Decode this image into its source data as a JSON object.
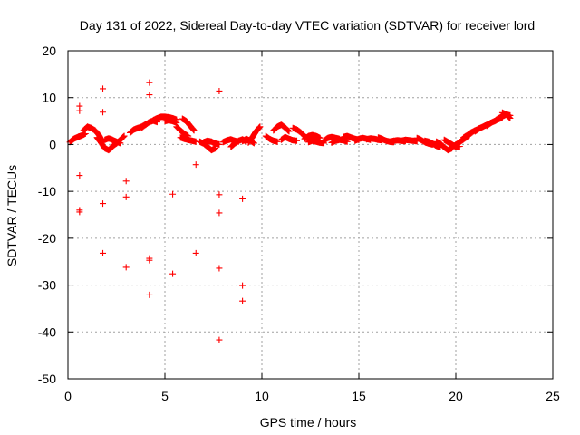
{
  "chart_data": {
    "type": "scatter",
    "title": "Day 131 of 2022, Sidereal Day-to-day VTEC variation (SDTVAR) for receiver lord",
    "xlabel": "GPS time / hours",
    "ylabel": "SDTVAR / TECUs",
    "xlim": [
      0,
      25
    ],
    "ylim": [
      -50,
      20
    ],
    "xticks": [
      0,
      5,
      10,
      15,
      20,
      25
    ],
    "yticks": [
      -50,
      -40,
      -30,
      -20,
      -10,
      0,
      10,
      20
    ],
    "grid": true,
    "marker": "+",
    "color": "#ff0000",
    "curve_segments": [
      {
        "x": [
          0.1,
          0.3,
          0.5,
          0.7,
          0.9
        ],
        "y": [
          0.5,
          1.2,
          1.6,
          1.9,
          2.3
        ]
      },
      {
        "x": [
          0.8,
          1.0,
          1.2,
          1.4,
          1.6,
          1.8
        ],
        "y": [
          3.0,
          3.8,
          3.5,
          3.0,
          2.0,
          0.5
        ]
      },
      {
        "x": [
          1.5,
          1.7,
          1.9,
          2.1,
          2.3
        ],
        "y": [
          1.5,
          0.4,
          -0.8,
          -1.2,
          -0.5
        ]
      },
      {
        "x": [
          1.9,
          2.1,
          2.3,
          2.5,
          2.7
        ],
        "y": [
          1.0,
          1.3,
          1.0,
          0.6,
          0.3
        ]
      },
      {
        "x": [
          2.3,
          2.5,
          2.7,
          2.9
        ],
        "y": [
          -0.3,
          0.2,
          1.0,
          1.8
        ]
      },
      {
        "x": [
          3.2,
          3.4,
          3.6,
          3.8,
          4.0
        ],
        "y": [
          2.5,
          3.2,
          3.5,
          3.8,
          4.3
        ]
      },
      {
        "x": [
          3.8,
          4.0,
          4.2,
          4.4,
          4.6
        ],
        "y": [
          3.6,
          4.2,
          4.8,
          5.1,
          4.8
        ]
      },
      {
        "x": [
          4.4,
          4.6,
          4.8,
          5.0,
          5.2,
          5.4,
          5.6
        ],
        "y": [
          5.2,
          5.6,
          5.9,
          5.9,
          5.8,
          5.6,
          5.3
        ]
      },
      {
        "x": [
          5.0,
          5.2,
          5.4,
          5.6
        ],
        "y": [
          5.0,
          5.2,
          5.0,
          4.6
        ]
      },
      {
        "x": [
          5.6,
          5.8,
          6.0,
          6.2
        ],
        "y": [
          3.8,
          3.0,
          2.3,
          1.8
        ]
      },
      {
        "x": [
          5.8,
          6.0,
          6.2,
          6.4,
          6.6
        ],
        "y": [
          1.5,
          1.2,
          1.0,
          0.8,
          0.6
        ]
      },
      {
        "x": [
          5.9,
          6.1,
          6.3,
          6.5
        ],
        "y": [
          5.5,
          5.0,
          4.0,
          3.0
        ]
      },
      {
        "x": [
          6.8,
          7.0,
          7.2,
          7.4,
          7.6
        ],
        "y": [
          0.6,
          0.2,
          -0.5,
          -1.2,
          -0.8
        ]
      },
      {
        "x": [
          7.0,
          7.2,
          7.4,
          7.6,
          7.8
        ],
        "y": [
          0.5,
          0.8,
          0.6,
          0.2,
          0.0
        ]
      },
      {
        "x": [
          8.0,
          8.2,
          8.4,
          8.6,
          8.8
        ],
        "y": [
          0.5,
          0.9,
          1.1,
          0.8,
          0.6
        ]
      },
      {
        "x": [
          8.4,
          8.6,
          8.8,
          9.0,
          9.2
        ],
        "y": [
          -0.5,
          0.2,
          0.8,
          1.1,
          0.6
        ]
      },
      {
        "x": [
          9.0,
          9.2,
          9.4,
          9.6
        ],
        "y": [
          0.7,
          1.2,
          0.8,
          0.3
        ]
      },
      {
        "x": [
          9.3,
          9.5,
          9.7,
          9.9
        ],
        "y": [
          0.4,
          1.5,
          2.8,
          3.8
        ]
      },
      {
        "x": [
          10.2,
          10.4,
          10.6,
          10.8
        ],
        "y": [
          1.8,
          1.2,
          0.8,
          0.6
        ]
      },
      {
        "x": [
          10.6,
          10.8,
          11.0,
          11.2,
          11.4
        ],
        "y": [
          3.0,
          3.8,
          4.2,
          3.6,
          2.8
        ]
      },
      {
        "x": [
          11.0,
          11.2,
          11.4,
          11.6,
          11.8
        ],
        "y": [
          1.0,
          1.6,
          1.2,
          0.9,
          0.8
        ]
      },
      {
        "x": [
          11.6,
          11.8,
          12.0,
          12.2,
          12.4
        ],
        "y": [
          3.5,
          3.2,
          2.6,
          1.8,
          1.0
        ]
      },
      {
        "x": [
          12.2,
          12.4,
          12.6,
          12.8,
          13.0
        ],
        "y": [
          1.2,
          1.8,
          2.0,
          1.8,
          1.4
        ]
      },
      {
        "x": [
          12.4,
          12.6,
          12.8,
          13.0,
          13.2
        ],
        "y": [
          0.5,
          0.8,
          0.6,
          0.4,
          0.3
        ]
      },
      {
        "x": [
          13.2,
          13.4,
          13.6,
          13.8,
          14.0
        ],
        "y": [
          0.8,
          1.4,
          1.6,
          1.4,
          1.2
        ]
      },
      {
        "x": [
          13.6,
          13.8,
          14.0,
          14.2,
          14.4
        ],
        "y": [
          0.4,
          0.8,
          1.0,
          0.9,
          0.6
        ]
      },
      {
        "x": [
          14.2,
          14.4,
          14.6,
          14.8,
          15.0
        ],
        "y": [
          1.6,
          1.8,
          1.5,
          1.2,
          1.0
        ]
      },
      {
        "x": [
          14.8,
          15.0,
          15.2,
          15.4,
          15.6
        ],
        "y": [
          0.8,
          1.2,
          1.4,
          1.2,
          1.0
        ]
      },
      {
        "x": [
          15.4,
          15.6,
          15.8,
          16.0,
          16.2
        ],
        "y": [
          1.1,
          1.3,
          1.2,
          1.0,
          0.9
        ]
      },
      {
        "x": [
          16.0,
          16.2,
          16.4,
          16.6,
          16.8
        ],
        "y": [
          1.5,
          1.2,
          0.8,
          0.6,
          0.5
        ]
      },
      {
        "x": [
          16.6,
          16.8,
          17.0,
          17.2,
          17.4
        ],
        "y": [
          0.6,
          0.8,
          0.9,
          0.8,
          0.7
        ]
      },
      {
        "x": [
          17.2,
          17.4,
          17.6,
          17.8,
          18.0
        ],
        "y": [
          0.8,
          1.0,
          0.9,
          0.8,
          0.7
        ]
      },
      {
        "x": [
          18.0,
          18.2,
          18.4,
          18.6,
          18.8
        ],
        "y": [
          1.4,
          1.0,
          0.5,
          0.2,
          0.0
        ]
      },
      {
        "x": [
          18.4,
          18.6,
          18.8,
          19.0,
          19.2
        ],
        "y": [
          0.8,
          0.6,
          0.2,
          -0.3,
          -0.6
        ]
      },
      {
        "x": [
          19.0,
          19.2,
          19.4,
          19.6,
          19.8
        ],
        "y": [
          0.6,
          0.2,
          -0.6,
          -1.2,
          -0.8
        ]
      },
      {
        "x": [
          19.4,
          19.6,
          19.8,
          20.0,
          20.2
        ],
        "y": [
          1.0,
          0.5,
          0.0,
          -0.5,
          -0.4
        ]
      },
      {
        "x": [
          19.9,
          20.1,
          20.3,
          20.5,
          20.7
        ],
        "y": [
          -0.3,
          0.2,
          0.8,
          1.4,
          2.0
        ]
      },
      {
        "x": [
          20.4,
          20.6,
          20.8,
          21.0,
          21.2
        ],
        "y": [
          1.5,
          2.0,
          2.6,
          3.0,
          3.4
        ]
      },
      {
        "x": [
          21.0,
          21.2,
          21.4,
          21.6,
          21.8
        ],
        "y": [
          2.8,
          3.4,
          3.8,
          4.2,
          4.6
        ]
      },
      {
        "x": [
          21.6,
          21.8,
          22.0,
          22.2,
          22.4
        ],
        "y": [
          4.0,
          4.6,
          5.0,
          5.4,
          5.8
        ]
      },
      {
        "x": [
          22.0,
          22.2,
          22.4,
          22.6,
          22.8
        ],
        "y": [
          5.0,
          5.6,
          6.0,
          6.4,
          6.2
        ]
      },
      {
        "x": [
          22.4,
          22.6,
          22.8
        ],
        "y": [
          6.8,
          6.4,
          5.6
        ]
      }
    ],
    "outliers": {
      "x": [
        0.6,
        0.6,
        0.6,
        0.6,
        0.6,
        1.8,
        1.8,
        1.8,
        1.8,
        3.0,
        3.0,
        3.0,
        4.2,
        4.2,
        4.2,
        4.2,
        4.2,
        5.4,
        5.4,
        6.6,
        6.6,
        7.8,
        7.8,
        7.8,
        7.8,
        7.8,
        9.0,
        9.0,
        9.0
      ],
      "y": [
        8.2,
        7.2,
        -6.6,
        -14.0,
        -14.4,
        11.9,
        6.9,
        -12.6,
        -23.2,
        -7.8,
        -11.2,
        -26.2,
        13.2,
        10.6,
        -24.3,
        -24.7,
        -32.1,
        -10.6,
        -27.6,
        -4.3,
        -23.2,
        11.4,
        -10.7,
        -14.6,
        -26.4,
        -41.7,
        -11.6,
        -30.1,
        -33.4
      ]
    }
  }
}
